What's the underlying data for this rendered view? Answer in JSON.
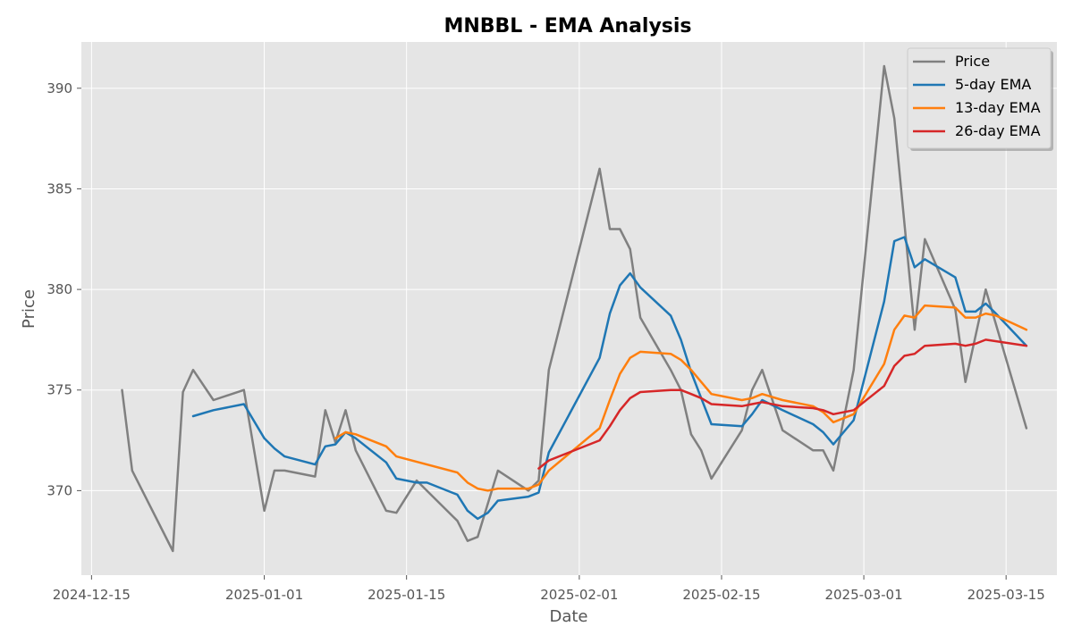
{
  "chart_data": {
    "type": "line",
    "title": "MNBBL - EMA Analysis",
    "xlabel": "Date",
    "ylabel": "Price",
    "xlim": [
      "2024-12-14",
      "2025-03-20"
    ],
    "ylim": [
      365.8,
      392.3
    ],
    "x_ticks": [
      "2024-12-15",
      "2025-01-01",
      "2025-01-15",
      "2025-02-01",
      "2025-02-15",
      "2025-03-01",
      "2025-03-15"
    ],
    "y_ticks": [
      370,
      375,
      380,
      385,
      390
    ],
    "grid": true,
    "legend_position": "top-right",
    "series": [
      {
        "name": "Price",
        "color": "#808080",
        "points": [
          [
            "2024-12-18",
            375.0
          ],
          [
            "2024-12-19",
            371.0
          ],
          [
            "2024-12-23",
            367.0
          ],
          [
            "2024-12-24",
            374.9
          ],
          [
            "2024-12-25",
            376.0
          ],
          [
            "2024-12-27",
            374.5
          ],
          [
            "2024-12-30",
            375.0
          ],
          [
            "2025-01-01",
            369.0
          ],
          [
            "2025-01-02",
            371.0
          ],
          [
            "2025-01-03",
            371.0
          ],
          [
            "2025-01-06",
            370.7
          ],
          [
            "2025-01-07",
            374.0
          ],
          [
            "2025-01-08",
            372.4
          ],
          [
            "2025-01-09",
            374.0
          ],
          [
            "2025-01-10",
            372.0
          ],
          [
            "2025-01-13",
            369.0
          ],
          [
            "2025-01-14",
            368.9
          ],
          [
            "2025-01-16",
            370.5
          ],
          [
            "2025-01-20",
            368.5
          ],
          [
            "2025-01-21",
            367.5
          ],
          [
            "2025-01-22",
            367.7
          ],
          [
            "2025-01-24",
            371.0
          ],
          [
            "2025-01-27",
            370.0
          ],
          [
            "2025-01-28",
            370.5
          ],
          [
            "2025-01-29",
            376.0
          ],
          [
            "2025-02-03",
            386.0
          ],
          [
            "2025-02-04",
            383.0
          ],
          [
            "2025-02-05",
            383.0
          ],
          [
            "2025-02-06",
            382.0
          ],
          [
            "2025-02-07",
            378.6
          ],
          [
            "2025-02-10",
            376.0
          ],
          [
            "2025-02-11",
            375.0
          ],
          [
            "2025-02-12",
            372.8
          ],
          [
            "2025-02-13",
            372.0
          ],
          [
            "2025-02-14",
            370.6
          ],
          [
            "2025-02-17",
            373.0
          ],
          [
            "2025-02-18",
            375.0
          ],
          [
            "2025-02-19",
            376.0
          ],
          [
            "2025-02-21",
            373.0
          ],
          [
            "2025-02-24",
            372.0
          ],
          [
            "2025-02-25",
            372.0
          ],
          [
            "2025-02-26",
            371.0
          ],
          [
            "2025-02-28",
            376.0
          ],
          [
            "2025-03-03",
            391.1
          ],
          [
            "2025-03-04",
            388.5
          ],
          [
            "2025-03-06",
            378.0
          ],
          [
            "2025-03-07",
            382.5
          ],
          [
            "2025-03-10",
            379.0
          ],
          [
            "2025-03-11",
            375.4
          ],
          [
            "2025-03-13",
            380.0
          ],
          [
            "2025-03-17",
            373.1
          ]
        ]
      },
      {
        "name": "5-day EMA",
        "color": "#1f77b4",
        "points": [
          [
            "2024-12-25",
            373.7
          ],
          [
            "2024-12-27",
            374.0
          ],
          [
            "2024-12-30",
            374.3
          ],
          [
            "2025-01-01",
            372.6
          ],
          [
            "2025-01-02",
            372.1
          ],
          [
            "2025-01-03",
            371.7
          ],
          [
            "2025-01-06",
            371.3
          ],
          [
            "2025-01-07",
            372.2
          ],
          [
            "2025-01-08",
            372.3
          ],
          [
            "2025-01-09",
            372.9
          ],
          [
            "2025-01-10",
            372.6
          ],
          [
            "2025-01-13",
            371.4
          ],
          [
            "2025-01-14",
            370.6
          ],
          [
            "2025-01-16",
            370.4
          ],
          [
            "2025-01-17",
            370.4
          ],
          [
            "2025-01-20",
            369.8
          ],
          [
            "2025-01-21",
            369.0
          ],
          [
            "2025-01-22",
            368.6
          ],
          [
            "2025-01-23",
            368.9
          ],
          [
            "2025-01-24",
            369.5
          ],
          [
            "2025-01-27",
            369.7
          ],
          [
            "2025-01-28",
            369.9
          ],
          [
            "2025-01-29",
            371.9
          ],
          [
            "2025-02-03",
            376.6
          ],
          [
            "2025-02-04",
            378.8
          ],
          [
            "2025-02-05",
            380.2
          ],
          [
            "2025-02-06",
            380.8
          ],
          [
            "2025-02-07",
            380.1
          ],
          [
            "2025-02-10",
            378.7
          ],
          [
            "2025-02-11",
            377.5
          ],
          [
            "2025-02-12",
            375.9
          ],
          [
            "2025-02-13",
            374.6
          ],
          [
            "2025-02-14",
            373.3
          ],
          [
            "2025-02-17",
            373.2
          ],
          [
            "2025-02-18",
            373.8
          ],
          [
            "2025-02-19",
            374.5
          ],
          [
            "2025-02-21",
            374.0
          ],
          [
            "2025-02-24",
            373.3
          ],
          [
            "2025-02-25",
            372.9
          ],
          [
            "2025-02-26",
            372.3
          ],
          [
            "2025-02-28",
            373.5
          ],
          [
            "2025-03-03",
            379.4
          ],
          [
            "2025-03-04",
            382.4
          ],
          [
            "2025-03-05",
            382.6
          ],
          [
            "2025-03-06",
            381.1
          ],
          [
            "2025-03-07",
            381.5
          ],
          [
            "2025-03-10",
            380.6
          ],
          [
            "2025-03-11",
            378.9
          ],
          [
            "2025-03-12",
            378.9
          ],
          [
            "2025-03-13",
            379.3
          ],
          [
            "2025-03-14",
            378.8
          ],
          [
            "2025-03-17",
            377.2
          ]
        ]
      },
      {
        "name": "13-day EMA",
        "color": "#ff7f0e",
        "points": [
          [
            "2025-01-08",
            372.6
          ],
          [
            "2025-01-09",
            372.9
          ],
          [
            "2025-01-10",
            372.8
          ],
          [
            "2025-01-13",
            372.2
          ],
          [
            "2025-01-14",
            371.7
          ],
          [
            "2025-01-20",
            370.9
          ],
          [
            "2025-01-21",
            370.4
          ],
          [
            "2025-01-22",
            370.1
          ],
          [
            "2025-01-23",
            370.0
          ],
          [
            "2025-01-24",
            370.1
          ],
          [
            "2025-01-27",
            370.1
          ],
          [
            "2025-01-28",
            370.3
          ],
          [
            "2025-01-29",
            371.0
          ],
          [
            "2025-02-03",
            373.1
          ],
          [
            "2025-02-04",
            374.5
          ],
          [
            "2025-02-05",
            375.8
          ],
          [
            "2025-02-06",
            376.6
          ],
          [
            "2025-02-07",
            376.9
          ],
          [
            "2025-02-10",
            376.8
          ],
          [
            "2025-02-11",
            376.5
          ],
          [
            "2025-02-12",
            376.0
          ],
          [
            "2025-02-13",
            375.4
          ],
          [
            "2025-02-14",
            374.8
          ],
          [
            "2025-02-17",
            374.5
          ],
          [
            "2025-02-18",
            374.6
          ],
          [
            "2025-02-19",
            374.8
          ],
          [
            "2025-02-21",
            374.5
          ],
          [
            "2025-02-24",
            374.2
          ],
          [
            "2025-02-25",
            373.9
          ],
          [
            "2025-02-26",
            373.4
          ],
          [
            "2025-02-28",
            373.8
          ],
          [
            "2025-03-03",
            376.3
          ],
          [
            "2025-03-04",
            378.0
          ],
          [
            "2025-03-05",
            378.7
          ],
          [
            "2025-03-06",
            378.6
          ],
          [
            "2025-03-07",
            379.2
          ],
          [
            "2025-03-10",
            379.1
          ],
          [
            "2025-03-11",
            378.6
          ],
          [
            "2025-03-12",
            378.6
          ],
          [
            "2025-03-13",
            378.8
          ],
          [
            "2025-03-14",
            378.7
          ],
          [
            "2025-03-17",
            378.0
          ]
        ]
      },
      {
        "name": "26-day EMA",
        "color": "#d62728",
        "points": [
          [
            "2025-01-28",
            371.1
          ],
          [
            "2025-01-29",
            371.5
          ],
          [
            "2025-02-03",
            372.5
          ],
          [
            "2025-02-04",
            373.2
          ],
          [
            "2025-02-05",
            374.0
          ],
          [
            "2025-02-06",
            374.6
          ],
          [
            "2025-02-07",
            374.9
          ],
          [
            "2025-02-10",
            375.0
          ],
          [
            "2025-02-11",
            375.0
          ],
          [
            "2025-02-12",
            374.8
          ],
          [
            "2025-02-13",
            374.6
          ],
          [
            "2025-02-14",
            374.3
          ],
          [
            "2025-02-17",
            374.2
          ],
          [
            "2025-02-18",
            374.3
          ],
          [
            "2025-02-19",
            374.4
          ],
          [
            "2025-02-21",
            374.2
          ],
          [
            "2025-02-24",
            374.1
          ],
          [
            "2025-02-25",
            374.0
          ],
          [
            "2025-02-26",
            373.8
          ],
          [
            "2025-02-28",
            374.0
          ],
          [
            "2025-03-03",
            375.2
          ],
          [
            "2025-03-04",
            376.2
          ],
          [
            "2025-03-05",
            376.7
          ],
          [
            "2025-03-06",
            376.8
          ],
          [
            "2025-03-07",
            377.2
          ],
          [
            "2025-03-10",
            377.3
          ],
          [
            "2025-03-11",
            377.2
          ],
          [
            "2025-03-12",
            377.3
          ],
          [
            "2025-03-13",
            377.5
          ],
          [
            "2025-03-17",
            377.2
          ]
        ]
      }
    ]
  }
}
